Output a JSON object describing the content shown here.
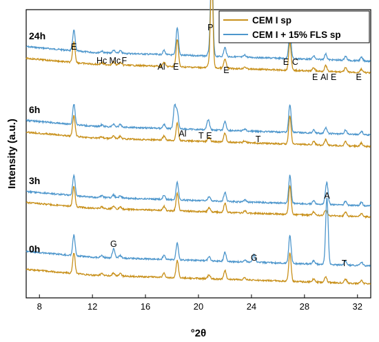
{
  "chart_data": {
    "type": "line",
    "xlabel": "°2θ",
    "ylabel": "Intensity (a.u.)",
    "xlim": [
      7,
      33
    ],
    "x_ticks": [
      8,
      12,
      16,
      20,
      24,
      28,
      32
    ],
    "grid": false,
    "legend_position": "top-right",
    "series": [
      {
        "name": "CEM I sp",
        "color": "#c8901a"
      },
      {
        "name": "CEM I + 15% FLS sp",
        "color": "#4d96cc"
      }
    ],
    "time_groups": [
      {
        "label": "24h",
        "offset_index": 3
      },
      {
        "label": "6h",
        "offset_index": 2
      },
      {
        "label": "3h",
        "offset_index": 1
      },
      {
        "label": "0h",
        "offset_index": 0
      }
    ],
    "reference_peaks": [
      {
        "two_theta": 10.6,
        "height": 0.5
      },
      {
        "two_theta": 12.7,
        "height": 0.04
      },
      {
        "two_theta": 13.6,
        "height": 0.07
      },
      {
        "two_theta": 14.1,
        "height": 0.06
      },
      {
        "two_theta": 17.4,
        "height": 0.1
      },
      {
        "two_theta": 18.4,
        "height": 0.42
      },
      {
        "two_theta": 20.8,
        "height": 0.1
      },
      {
        "two_theta": 22.0,
        "height": 0.22
      },
      {
        "two_theta": 23.5,
        "height": 0.05
      },
      {
        "two_theta": 26.9,
        "height": 0.68
      },
      {
        "two_theta": 28.7,
        "height": 0.08
      },
      {
        "two_theta": 29.6,
        "height": 0.14
      },
      {
        "two_theta": 31.1,
        "height": 0.1
      },
      {
        "two_theta": 32.3,
        "height": 0.08
      }
    ],
    "extra_peaks": [
      {
        "group": "24h",
        "series": "both",
        "two_theta": 21.0,
        "height": 2.3
      },
      {
        "group": "24h",
        "series": "both",
        "two_theta": 18.4,
        "height": 0.25
      },
      {
        "group": "6h",
        "series": 1,
        "two_theta": 18.2,
        "height": 0.55
      },
      {
        "group": "6h",
        "series": 1,
        "two_theta": 20.7,
        "height": 0.18
      },
      {
        "group": "3h",
        "series": 1,
        "two_theta": 29.7,
        "height": 0.45
      },
      {
        "group": "0h",
        "series": 1,
        "two_theta": 29.7,
        "height": 1.55
      },
      {
        "group": "0h",
        "series": 1,
        "two_theta": 13.6,
        "height": 0.15
      },
      {
        "group": "0h",
        "series": 1,
        "two_theta": 24.2,
        "height": 0.18
      }
    ],
    "annotations": [
      {
        "group": "24h",
        "labels": [
          {
            "text": "E",
            "x": 10.6
          },
          {
            "text": "Hc",
            "x": 12.7
          },
          {
            "text": "Mc",
            "x": 13.7
          },
          {
            "text": "F",
            "x": 14.4
          },
          {
            "text": "Al",
            "x": 17.2
          },
          {
            "text": "E",
            "x": 18.3
          },
          {
            "text": "P",
            "x": 20.9
          },
          {
            "text": "E",
            "x": 22.1
          },
          {
            "text": "E",
            "x": 26.6
          },
          {
            "text": "C",
            "x": 27.3
          },
          {
            "text": "E",
            "x": 28.8
          },
          {
            "text": "Al",
            "x": 29.5
          },
          {
            "text": "E",
            "x": 30.2
          },
          {
            "text": "E",
            "x": 32.1
          }
        ]
      },
      {
        "group": "6h",
        "labels": [
          {
            "text": "Al",
            "x": 18.8
          },
          {
            "text": "T",
            "x": 20.2
          },
          {
            "text": "E",
            "x": 20.8
          },
          {
            "text": "T",
            "x": 24.5
          }
        ]
      },
      {
        "group": "3h",
        "labels": [
          {
            "text": "A",
            "x": 29.7
          }
        ]
      },
      {
        "group": "0h",
        "labels": [
          {
            "text": "G",
            "x": 13.6
          },
          {
            "text": "G",
            "x": 24.2
          },
          {
            "text": "T",
            "x": 31.0
          }
        ]
      }
    ]
  }
}
